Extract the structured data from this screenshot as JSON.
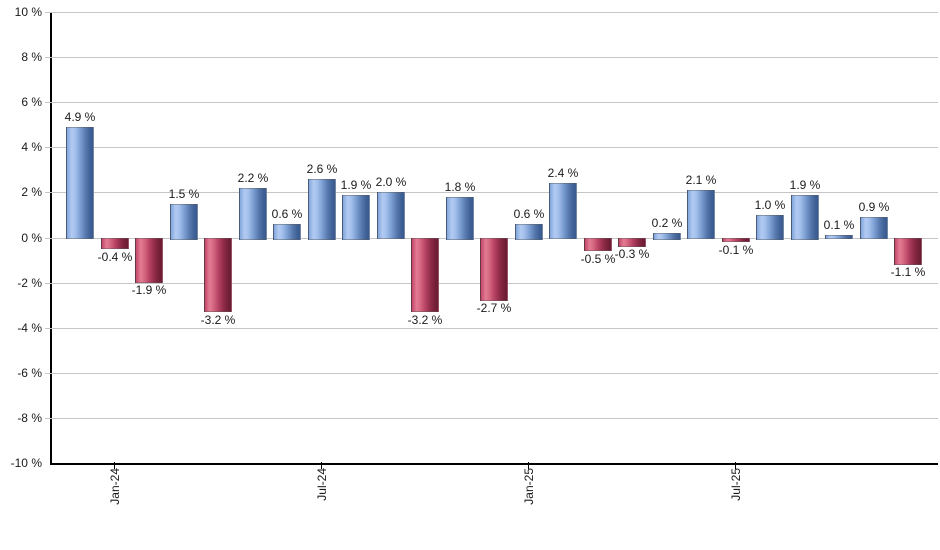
{
  "chart_data": {
    "type": "bar",
    "title": "",
    "xlabel": "",
    "ylabel": "",
    "ylim": [
      -10,
      10
    ],
    "grid": true,
    "legend_position": "none",
    "y_tick_values": [
      10,
      8,
      6,
      4,
      2,
      0,
      -2,
      -4,
      -6,
      -8,
      -10
    ],
    "y_tick_labels": [
      "10 %",
      "8 %",
      "6 %",
      "4 %",
      "2 %",
      "0 %",
      "-2 %",
      "-4 %",
      "-6 %",
      "-8 %",
      "-10 %"
    ],
    "values": [
      4.9,
      -0.4,
      -1.9,
      1.5,
      -3.2,
      2.2,
      0.6,
      2.6,
      1.9,
      2.0,
      -3.2,
      1.8,
      -2.7,
      0.6,
      2.4,
      -0.5,
      -0.3,
      0.2,
      2.1,
      -0.1,
      1.0,
      1.9,
      0.1,
      0.9,
      -1.1
    ],
    "value_labels": [
      "4.9 %",
      "-0.4 %",
      "-1.9 %",
      "1.5 %",
      "-3.2 %",
      "2.2 %",
      "0.6 %",
      "2.6 %",
      "1.9 %",
      "2.0 %",
      "-3.2 %",
      "1.8 %",
      "-2.7 %",
      "0.6 %",
      "2.4 %",
      "-0.5 %",
      "-0.3 %",
      "0.2 %",
      "2.1 %",
      "-0.1 %",
      "1.0 %",
      "1.9 %",
      "0.1 %",
      "0.9 %",
      "-1.1 %"
    ],
    "x_ticks": [
      {
        "label": "Jan-24",
        "bar_index": 1
      },
      {
        "label": "Jul-24",
        "bar_index": 7
      },
      {
        "label": "Jan-25",
        "bar_index": 13
      },
      {
        "label": "Jul-25",
        "bar_index": 19
      }
    ],
    "colors": {
      "positive_light": "#b2cbf2",
      "positive_dark": "#3a5a8e",
      "negative_light": "#e37c95",
      "negative_dark": "#6c1b33",
      "gridline": "#c6c6c6",
      "axis": "#000000",
      "label_text": "#1a1a1a",
      "background": "#ffffff"
    }
  }
}
